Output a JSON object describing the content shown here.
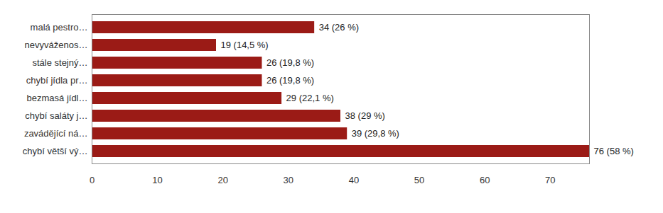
{
  "chart_data": {
    "type": "bar",
    "orientation": "horizontal",
    "categories": [
      "malá pestro…",
      "nevyváženos…",
      "stále stejný…",
      "chybí jídla pr…",
      "bezmasá jídl…",
      "chybí saláty j…",
      "zavádějící ná…",
      "chybí větší vý…"
    ],
    "values": [
      34,
      19,
      26,
      26,
      29,
      38,
      39,
      76
    ],
    "value_labels": [
      "34 (26 %)",
      "19 (14,5 %)",
      "26 (19,8 %)",
      "26 (19,8 %)",
      "29 (22,1 %)",
      "38 (29 %)",
      "39 (29,8 %)",
      "76 (58 %)"
    ],
    "data_labels": true,
    "color": "#9b1b16",
    "xlim": [
      0,
      76
    ],
    "xticks": [
      0,
      10,
      20,
      30,
      40,
      50,
      60,
      70
    ],
    "grid": false
  }
}
